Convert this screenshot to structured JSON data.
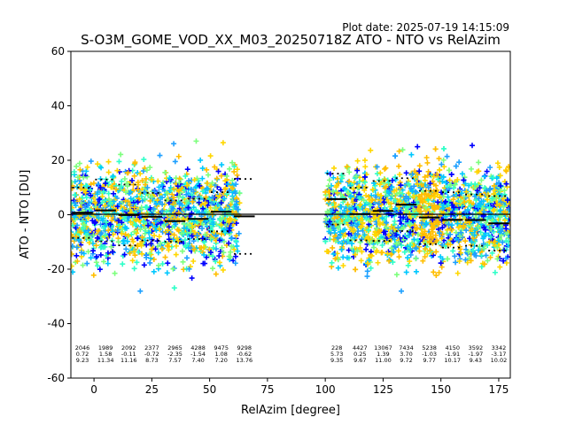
{
  "figure": {
    "date_label": "Plot date: 2025-07-19 14:15:09"
  },
  "chart_data": {
    "type": "scatter",
    "title": "S-O3M_GOME_VOD_XX_M03_20250718Z ATO - NTO vs RelAzim",
    "xlabel": "RelAzim [degree]",
    "ylabel": "ATO - NTO [DU]",
    "xlim": [
      -10,
      180
    ],
    "ylim": [
      -60,
      60
    ],
    "xticks": [
      0,
      25,
      50,
      75,
      100,
      125,
      150,
      175
    ],
    "yticks": [
      -60,
      -40,
      -20,
      0,
      20,
      40,
      60
    ],
    "grid": false,
    "colors": {
      "blue": "#0000ff",
      "cyan": "#00c8ff",
      "sky": "#1ea0ff",
      "teal": "#2fffc8",
      "green": "#7dff7d",
      "yellow": "#ffd700",
      "orange": "#ffbe00"
    },
    "zero_line": 0,
    "bins": [
      {
        "x": 0,
        "count": "2046",
        "mean": "0.72",
        "std": "9.23"
      },
      {
        "x": 10,
        "count": "1989",
        "mean": "1.58",
        "std": "11.34"
      },
      {
        "x": 20,
        "count": "2092",
        "mean": "-0.11",
        "std": "11.16"
      },
      {
        "x": 30,
        "count": "2377",
        "mean": "-0.72",
        "std": "8.73"
      },
      {
        "x": 40,
        "count": "2965",
        "mean": "-2.35",
        "std": "7.57"
      },
      {
        "x": 50,
        "count": "4288",
        "mean": "-1.54",
        "std": "7.40"
      },
      {
        "x": 60,
        "count": "9475",
        "mean": "1.08",
        "std": "7.20"
      },
      {
        "x": 70,
        "count": "9298",
        "mean": "-0.62",
        "std": "13.76"
      },
      {
        "x": 110,
        "count": "228",
        "mean": "5.73",
        "std": "9.35"
      },
      {
        "x": 120,
        "count": "4427",
        "mean": "0.25",
        "std": "9.67"
      },
      {
        "x": 130,
        "count": "13067",
        "mean": "1.39",
        "std": "11.00"
      },
      {
        "x": 140,
        "count": "7434",
        "mean": "3.70",
        "std": "9.72"
      },
      {
        "x": 150,
        "count": "5238",
        "mean": "-1.03",
        "std": "9.77"
      },
      {
        "x": 160,
        "count": "4150",
        "mean": "-1.91",
        "std": "10.17"
      },
      {
        "x": 170,
        "count": "3592",
        "mean": "-1.97",
        "std": "9.43"
      },
      {
        "x": 180,
        "count": "3342",
        "mean": "-3.17",
        "std": "10.02"
      }
    ]
  }
}
